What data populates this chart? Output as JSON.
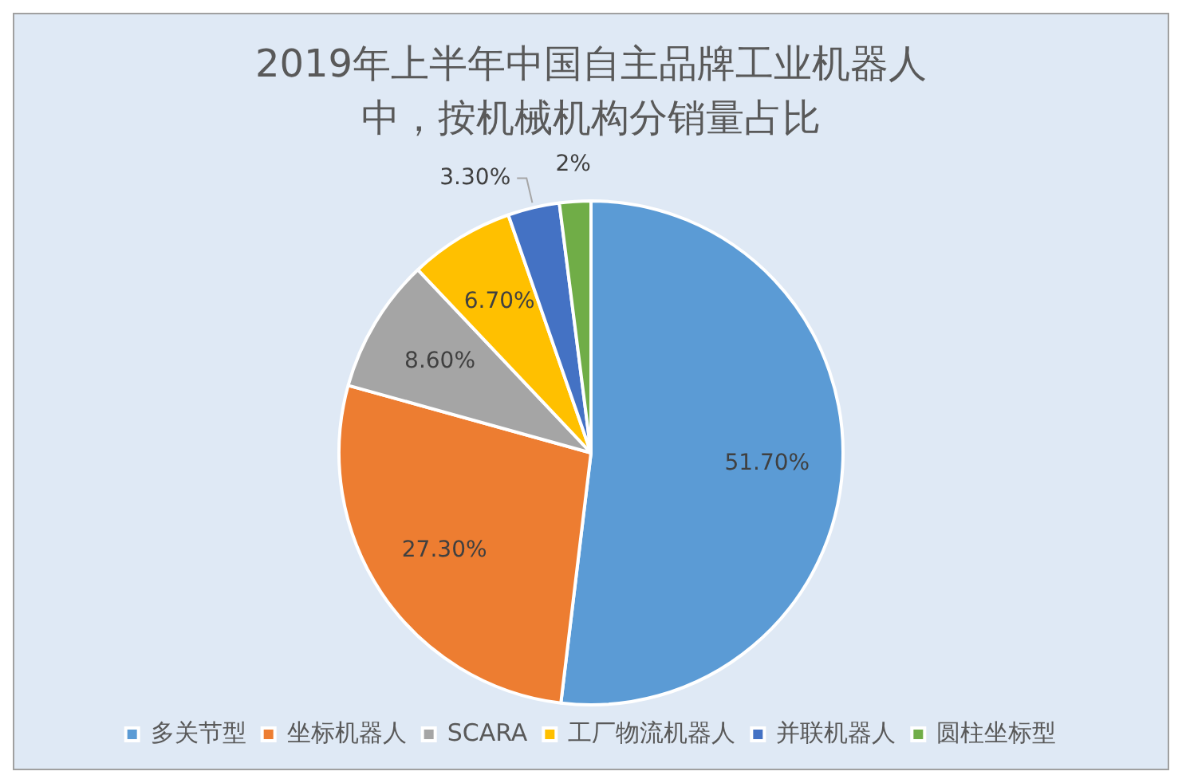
{
  "chart_data": {
    "type": "pie",
    "title": "2019年上半年中国自主品牌工业机器人中，按机械机构分销量占比",
    "categories": [
      "多关节型",
      "坐标机器人",
      "SCARA",
      "工厂物流机器人",
      "并联机器人",
      "圆柱坐标型"
    ],
    "values": [
      51.7,
      27.3,
      8.6,
      6.7,
      3.3,
      2
    ],
    "value_labels": [
      "51.70%",
      "27.30%",
      "8.60%",
      "6.70%",
      "3.30%",
      "2%"
    ],
    "colors": [
      "#5b9bd5",
      "#ed7d31",
      "#a5a5a5",
      "#ffc000",
      "#4472c4",
      "#70ad47"
    ],
    "legend": "bottom"
  }
}
